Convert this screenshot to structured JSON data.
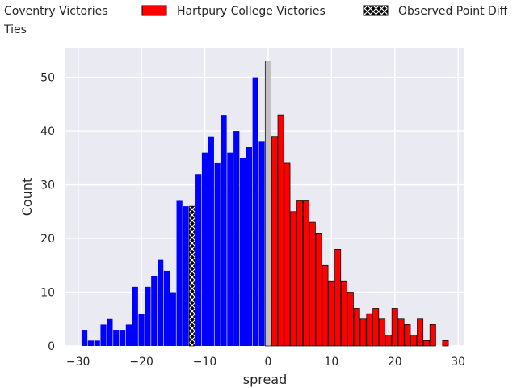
{
  "chart_data": {
    "type": "bar",
    "xlabel": "spread",
    "ylabel": "Count",
    "xlim": [
      -32,
      31
    ],
    "ylim": [
      0,
      55.5
    ],
    "xticks": [
      -30,
      -20,
      -10,
      0,
      10,
      20,
      30
    ],
    "yticks": [
      0,
      10,
      20,
      30,
      40,
      50
    ],
    "grid": true,
    "legend_placement": "top (outside plot, clipped)",
    "series": [
      {
        "name": "Coventry Victories",
        "color": "#0000ff",
        "x": [
          -29,
          -28,
          -27,
          -26,
          -25,
          -24,
          -23,
          -22,
          -21,
          -20,
          -19,
          -18,
          -17,
          -16,
          -15,
          -14,
          -13,
          -11,
          -10,
          -9,
          -8,
          -7,
          -6,
          -5,
          -4,
          -3,
          -2,
          -1
        ],
        "values": [
          3,
          1,
          1,
          4,
          5,
          3,
          3,
          4,
          11,
          6,
          11,
          13,
          16,
          14,
          10,
          27,
          26,
          32,
          36,
          39,
          34,
          43,
          36,
          40,
          35,
          37,
          50,
          38
        ]
      },
      {
        "name": "Ties",
        "color": "#c0c0c0",
        "x": [
          0
        ],
        "values": [
          53
        ]
      },
      {
        "name": "Hartpury College Victories",
        "color": "#ff0000",
        "x": [
          1,
          2,
          3,
          4,
          5,
          6,
          7,
          8,
          9,
          10,
          11,
          12,
          13,
          14,
          15,
          16,
          17,
          18,
          19,
          20,
          21,
          22,
          23,
          24,
          25,
          26,
          27,
          28
        ],
        "values": [
          39,
          43,
          34,
          25,
          27,
          27,
          23,
          21,
          15,
          12,
          18,
          12,
          10,
          7,
          5,
          6,
          7,
          5,
          2,
          7,
          5,
          4,
          2,
          5,
          1,
          4,
          0,
          1
        ]
      },
      {
        "name": "Observed Point Diff",
        "color": "#000000",
        "hatch": "x",
        "x": [
          -12
        ],
        "values": [
          26
        ]
      }
    ]
  },
  "legend": {
    "items": [
      {
        "label": "Coventry Victories",
        "color": "#0000ff"
      },
      {
        "label": "Hartpury College Victories",
        "color": "#ff0000"
      },
      {
        "label": "Observed Point Diff",
        "color": "#000000"
      },
      {
        "label": "Ties",
        "color": "#c0c0c0"
      }
    ]
  },
  "colors": {
    "plot_background": "#eaeaf2",
    "grid": "#ffffff"
  }
}
